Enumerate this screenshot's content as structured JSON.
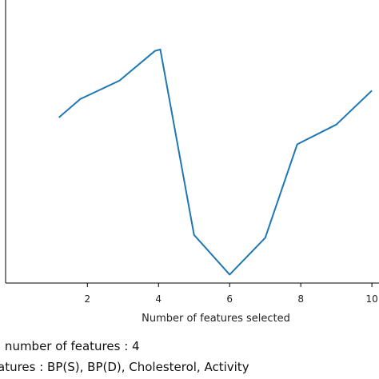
{
  "chart_data": {
    "type": "line",
    "title": "",
    "xlabel": "Number of features selected",
    "ylabel": "",
    "xlim": [
      -0.3,
      10.2
    ],
    "ylim": [
      0,
      1
    ],
    "xticks": [
      "2",
      "4",
      "6",
      "8",
      "10"
    ],
    "grid": false,
    "series": [
      {
        "color": "#1f77b4",
        "x": [
          1.2,
          1.8,
          2.9,
          3.9,
          4.05,
          5.0,
          6.0,
          7.0,
          7.9,
          9.0,
          10.0
        ],
        "y": [
          0.585,
          0.65,
          0.715,
          0.82,
          0.825,
          0.17,
          0.03,
          0.16,
          0.49,
          0.56,
          0.68
        ]
      }
    ]
  },
  "captions": {
    "line1": "l number of features : 4",
    "line2": "atures : BP(S), BP(D), Cholesterol, Activity"
  }
}
